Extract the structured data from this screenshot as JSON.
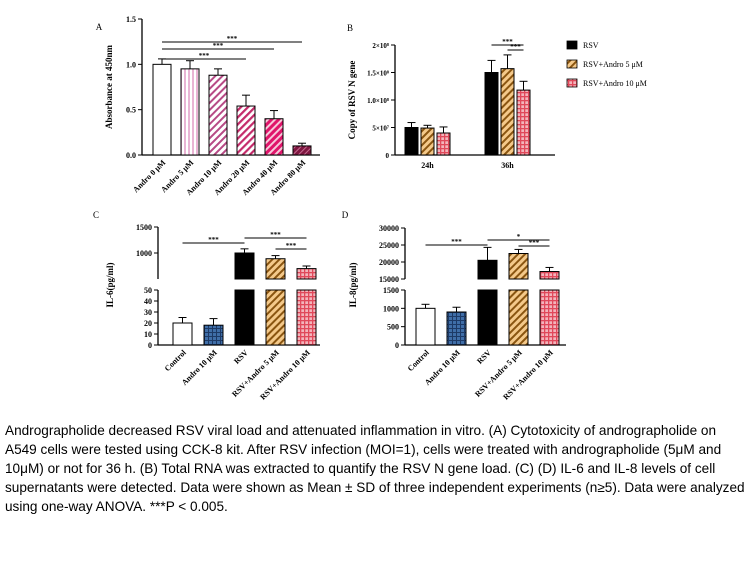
{
  "caption": "Andrographolide decreased RSV viral load and attenuated inflammation in vitro. (A) Cytotoxicity of andrographolide on A549 cells were tested using CCK-8 kit. After RSV infection (MOI=1), cells were treated with andrographolide (5μM and 10μM) or not for 36 h. (B) Total RNA was extracted to quantify the RSV N gene load. (C) (D) IL-6 and IL-8 levels of cell supernatants were detected. Data were shown as Mean ± SD of three independent experiments (n≥5). Data were analyzed using one-way ANOVA. ***P < 0.005.",
  "colors": {
    "white": "#ffffff",
    "pink_light": "#e9b4d4",
    "mauve": "#b74a86",
    "rose": "#c42a6a",
    "magenta": "#e0156b",
    "wine": "#7e1640",
    "black": "#000000",
    "orange": "#e39a3b",
    "red_check": "#e0485a",
    "blue_check": "#3f6ea8"
  },
  "chart_data": [
    {
      "panel": "A",
      "type": "bar",
      "ylabel": "Absorbance at 450nm",
      "ylim": [
        0,
        1.5
      ],
      "yticks": [
        "0.0",
        "0.5",
        "1.0",
        "1.5"
      ],
      "categories": [
        "Andro 0 μM",
        "Andro 5 μM",
        "Andro 10 μM",
        "Andro 20 μM",
        "Andro 40 μM",
        "Andro 80 μM"
      ],
      "values": [
        1.0,
        0.95,
        0.88,
        0.54,
        0.4,
        0.1
      ],
      "errors": [
        0.06,
        0.09,
        0.07,
        0.12,
        0.09,
        0.03
      ],
      "significance": [
        {
          "from": 0,
          "to": 5,
          "label": "***"
        },
        {
          "from": 0,
          "to": 4,
          "label": "***"
        },
        {
          "from": 0,
          "to": 3,
          "label": "***"
        }
      ]
    },
    {
      "panel": "B",
      "type": "bar",
      "ylabel": "Copy of RSV N gene",
      "ylim": [
        0,
        200000000
      ],
      "yticks": [
        "0",
        "5×10⁷",
        "1.0×10⁸",
        "1.5×10⁸",
        "2×10⁸"
      ],
      "categories": [
        "24h",
        "36h"
      ],
      "series": [
        {
          "name": "RSV",
          "values": [
            50000000,
            150000000
          ],
          "errors": [
            9000000,
            22000000
          ]
        },
        {
          "name": "RSV+Andro 5 μM",
          "values": [
            49000000,
            157000000
          ],
          "errors": [
            5000000,
            25000000
          ]
        },
        {
          "name": "RSV+Andro 10 μM",
          "values": [
            40000000,
            118000000
          ],
          "errors": [
            11000000,
            16000000
          ]
        }
      ],
      "significance": [
        {
          "group": 1,
          "from": 0,
          "to": 2,
          "label": "***"
        },
        {
          "group": 1,
          "from": 1,
          "to": 2,
          "label": "***"
        }
      ]
    },
    {
      "panel": "C",
      "type": "bar",
      "ylabel": "IL-6(pg/ml)",
      "yticks_lower": [
        "0",
        "10",
        "20",
        "30",
        "40",
        "50"
      ],
      "yticks_upper": [
        "1000",
        "1500"
      ],
      "categories": [
        "Control",
        "Andro 10 μM",
        "RSV",
        "RSV+Andro 5 μM",
        "RSV+Andro 10 μM"
      ],
      "values": [
        20,
        18,
        1000,
        890,
        700
      ],
      "errors": [
        5,
        6,
        80,
        60,
        50
      ],
      "significance": [
        {
          "from": 0,
          "to": 2,
          "label": "***"
        },
        {
          "from": 2,
          "to": 4,
          "label": "***"
        },
        {
          "from": 3,
          "to": 4,
          "label": "***"
        }
      ]
    },
    {
      "panel": "D",
      "type": "bar",
      "ylabel": "IL-8(pg/ml)",
      "yticks_lower": [
        "0",
        "500",
        "1000",
        "1500"
      ],
      "yticks_upper": [
        "15000",
        "20000",
        "25000",
        "30000"
      ],
      "categories": [
        "Control",
        "Andro 10 μM",
        "RSV",
        "RSV+Andro 5 μM",
        "RSV+Andro 10 μM"
      ],
      "values": [
        1000,
        900,
        20500,
        22500,
        17200
      ],
      "errors": [
        110,
        130,
        3800,
        1200,
        1200
      ],
      "significance": [
        {
          "from": 0,
          "to": 2,
          "label": "***"
        },
        {
          "from": 2,
          "to": 4,
          "label": "*"
        },
        {
          "from": 3,
          "to": 4,
          "label": "***"
        }
      ]
    }
  ]
}
